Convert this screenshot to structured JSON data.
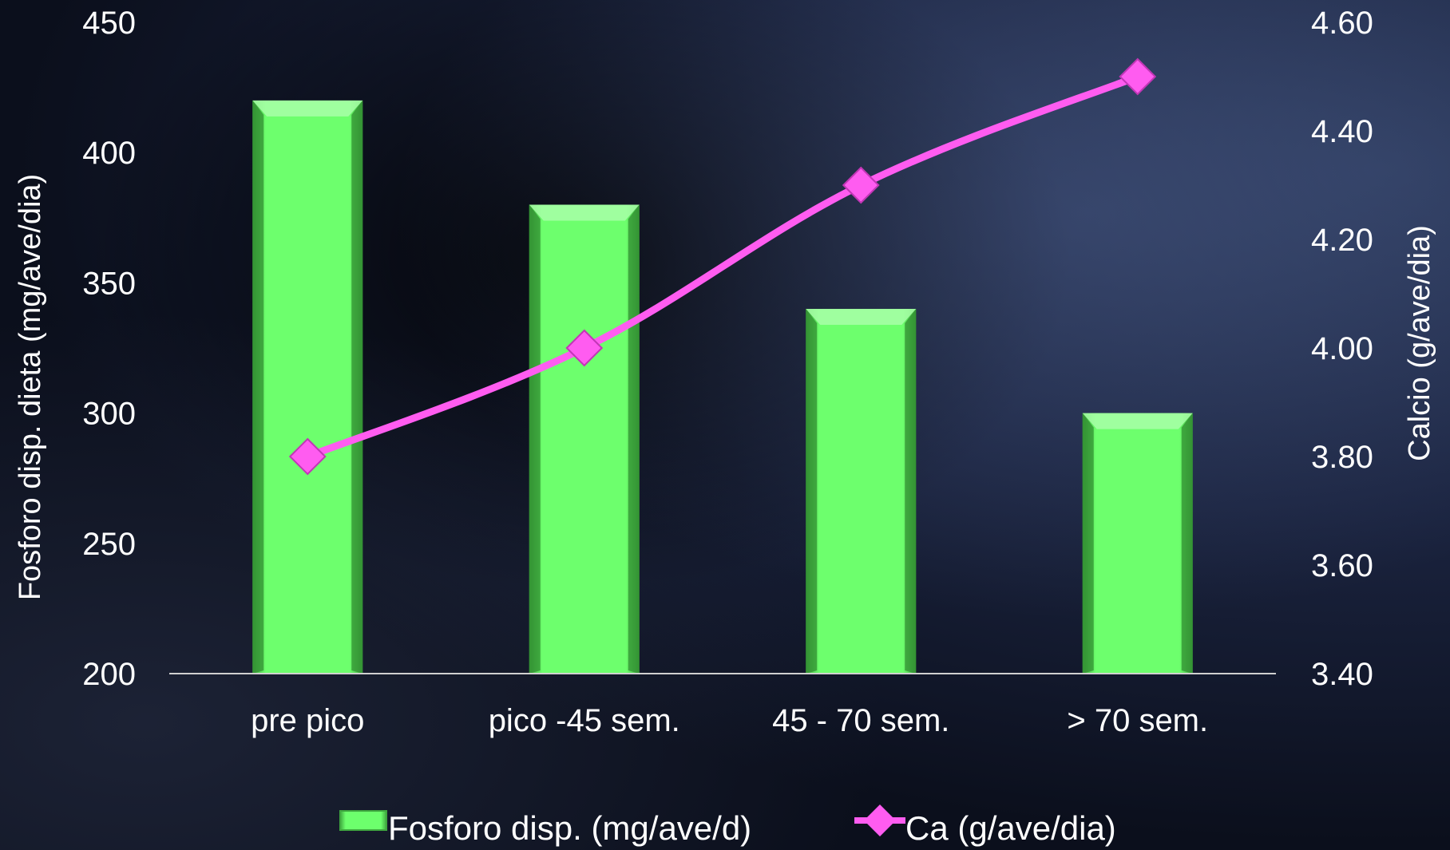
{
  "chart_data": {
    "type": "bar",
    "categories": [
      "pre pico",
      "pico -45 sem.",
      "45 - 70 sem.",
      "> 70 sem."
    ],
    "series": [
      {
        "name": "Fosforo disp. (mg/ave/d)",
        "type": "bar",
        "axis": "left",
        "values": [
          420,
          380,
          340,
          300
        ],
        "color": "#6cff6c"
      },
      {
        "name": "Ca (g/ave/dia)",
        "type": "line",
        "axis": "right",
        "values": [
          3.8,
          4.0,
          4.3,
          4.5
        ],
        "color": "#ff5cf0"
      }
    ],
    "ylabel": "Fosforo disp. dieta (mg/ave/dia)",
    "y2label": "Calcio (g/ave/dia)",
    "ylim": [
      200,
      450
    ],
    "y2lim": [
      3.4,
      4.6
    ],
    "yticks": [
      "200",
      "250",
      "300",
      "350",
      "400",
      "450"
    ],
    "y2ticks": [
      "3.40",
      "3.60",
      "3.80",
      "4.00",
      "4.20",
      "4.40",
      "4.60"
    ],
    "legend_position": "bottom",
    "grid": false
  }
}
